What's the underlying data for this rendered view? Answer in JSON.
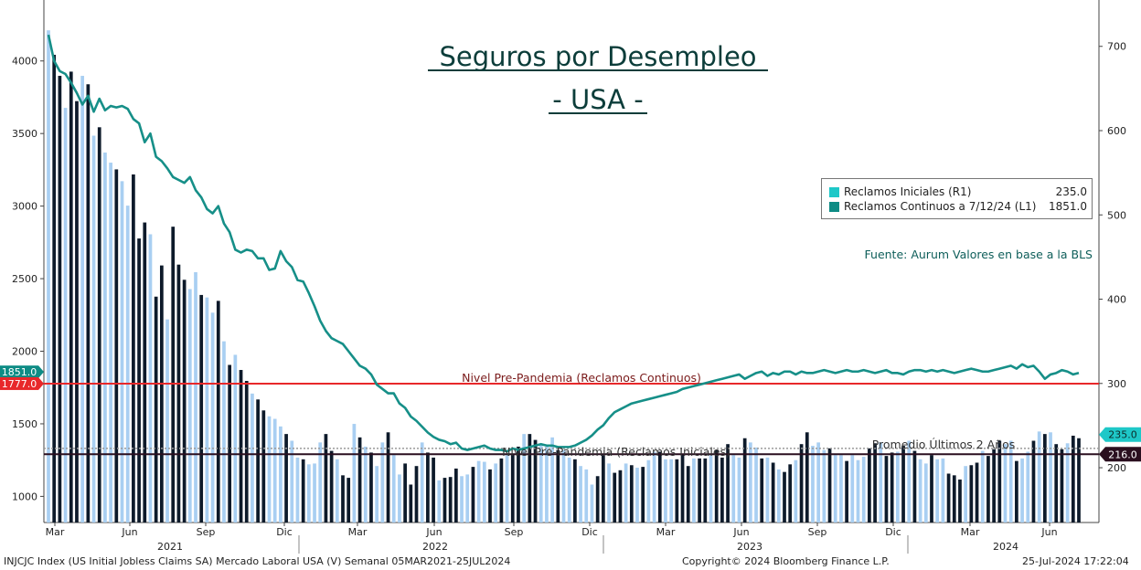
{
  "chart_data": {
    "type": "bar+line",
    "title": "Seguros por Desempleo",
    "subtitle": "- USA -",
    "source_note": "Fuente: Aurum Valores en base a la BLS",
    "x_month_ticks": [
      "Mar",
      "Jun",
      "Sep",
      "Dic",
      "Mar",
      "Jun",
      "Sep",
      "Dic",
      "Mar",
      "Jun",
      "Sep",
      "Dic",
      "Mar",
      "Jun"
    ],
    "x_year_ticks": [
      "2021",
      "2022",
      "2023",
      "2024"
    ],
    "left_axis": {
      "ticks": [
        "1000",
        "1500",
        "2000",
        "2500",
        "3000",
        "3500",
        "4000"
      ],
      "ylim": [
        820,
        4420
      ]
    },
    "right_axis": {
      "ticks": [
        "200",
        "300",
        "400",
        "500",
        "600",
        "700"
      ],
      "ylim": [
        135,
        755
      ]
    },
    "legend": [
      {
        "name": "Reclamos Iniciales (R1)",
        "value": "235.0",
        "color": "#1ec8c8"
      },
      {
        "name": "Reclamos Continuos a 7/12/24 (L1)",
        "value": "1851.0",
        "color": "#0e8c85"
      }
    ],
    "reference_lines": [
      {
        "label": "Nivel Pre-Pandemia (Reclamos Continuos)",
        "value": 1777.0,
        "axis": "left",
        "color": "#e8282a",
        "badge": "1777.0"
      },
      {
        "label": "Nivel Pre-Pandemia (Reclamos Iniciales)",
        "value": 216.0,
        "axis": "right",
        "color": "#2a0f1f",
        "badge": "216.0"
      },
      {
        "label": "Promedio Últimos 2 Años",
        "value": 223.0,
        "axis": "right",
        "color": "#9a9a9a",
        "style": "dotted"
      }
    ],
    "last_value_badges": [
      {
        "label": "1851.0",
        "axis": "left",
        "value": 1851.0,
        "color": "#0e8c85"
      },
      {
        "label": "235.0",
        "axis": "right",
        "value": 235.0,
        "color": "#1ec8c8"
      }
    ],
    "initial_claims_weekly": [
      719,
      690,
      665,
      627,
      670,
      635,
      665,
      655,
      594,
      604,
      574,
      562,
      554,
      540,
      511,
      548,
      472,
      491,
      477,
      403,
      440,
      376,
      486,
      441,
      423,
      412,
      432,
      405,
      402,
      384,
      398,
      350,
      322,
      334,
      316,
      303,
      288,
      281,
      268,
      261,
      258,
      249,
      240,
      232,
      212,
      210,
      204,
      205,
      230,
      240,
      220,
      210,
      191,
      188,
      252,
      236,
      225,
      218,
      202,
      230,
      242,
      215,
      192,
      205,
      180,
      202,
      230,
      218,
      212,
      185,
      188,
      189,
      199,
      190,
      192,
      201,
      208,
      207,
      198,
      205,
      211,
      215,
      216,
      225,
      240,
      240,
      233,
      227,
      225,
      236,
      221,
      221,
      212,
      210,
      202,
      198,
      180,
      190,
      215,
      205,
      194,
      197,
      205,
      203,
      200,
      201,
      209,
      219,
      219,
      210,
      210,
      210,
      216,
      202,
      211,
      211,
      211,
      215,
      221,
      212,
      228,
      215,
      212,
      235,
      230,
      224,
      211,
      212,
      206,
      198,
      195,
      204,
      209,
      228,
      242,
      226,
      230,
      221,
      223,
      215,
      215,
      208,
      215,
      209,
      213,
      223,
      229,
      230,
      214,
      218,
      219,
      226,
      232,
      220,
      210,
      205,
      215,
      210,
      211,
      193,
      191,
      186,
      202,
      203,
      206,
      220,
      214,
      222,
      232,
      228,
      232,
      208,
      211,
      219,
      232,
      243,
      240,
      242,
      228,
      222,
      229,
      238,
      235
    ],
    "continuing_claims_weekly": [
      4180,
      4000,
      3930,
      3910,
      3850,
      3780,
      3700,
      3760,
      3650,
      3740,
      3660,
      3690,
      3680,
      3690,
      3670,
      3600,
      3570,
      3440,
      3500,
      3340,
      3310,
      3260,
      3200,
      3180,
      3160,
      3200,
      3110,
      3060,
      2980,
      2950,
      3000,
      2880,
      2820,
      2700,
      2680,
      2700,
      2690,
      2640,
      2640,
      2560,
      2570,
      2690,
      2620,
      2580,
      2490,
      2480,
      2400,
      2310,
      2210,
      2140,
      2090,
      2070,
      2050,
      2000,
      1950,
      1900,
      1880,
      1840,
      1770,
      1740,
      1710,
      1710,
      1640,
      1610,
      1550,
      1520,
      1480,
      1440,
      1410,
      1390,
      1380,
      1360,
      1370,
      1330,
      1320,
      1330,
      1340,
      1350,
      1330,
      1320,
      1320,
      1310,
      1330,
      1320,
      1330,
      1340,
      1350,
      1360,
      1350,
      1350,
      1340,
      1340,
      1340,
      1350,
      1370,
      1390,
      1420,
      1460,
      1490,
      1540,
      1580,
      1600,
      1620,
      1640,
      1650,
      1660,
      1670,
      1680,
      1690,
      1700,
      1710,
      1720,
      1740,
      1750,
      1760,
      1770,
      1780,
      1790,
      1800,
      1810,
      1820,
      1830,
      1840,
      1810,
      1830,
      1850,
      1860,
      1830,
      1850,
      1840,
      1860,
      1860,
      1840,
      1860,
      1850,
      1850,
      1860,
      1870,
      1860,
      1850,
      1860,
      1870,
      1860,
      1860,
      1870,
      1860,
      1850,
      1860,
      1870,
      1850,
      1850,
      1840,
      1860,
      1870,
      1870,
      1860,
      1870,
      1860,
      1870,
      1860,
      1850,
      1860,
      1870,
      1880,
      1870,
      1860,
      1860,
      1870,
      1880,
      1890,
      1900,
      1880,
      1910,
      1890,
      1900,
      1860,
      1810,
      1840,
      1850,
      1870,
      1860,
      1840,
      1851
    ]
  }
}
